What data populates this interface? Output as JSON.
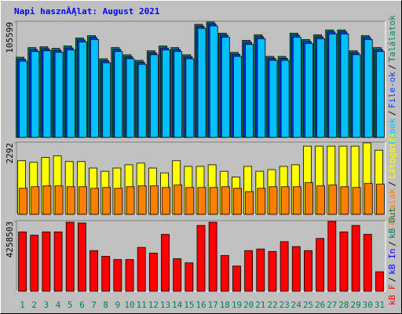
{
  "chart_data": [
    {
      "type": "bar",
      "title": "Napi hasznĂĄlat: August 2021",
      "categories": [
        "1",
        "2",
        "3",
        "4",
        "5",
        "6",
        "7",
        "8",
        "9",
        "10",
        "11",
        "12",
        "13",
        "14",
        "15",
        "16",
        "17",
        "18",
        "19",
        "20",
        "21",
        "22",
        "23",
        "24",
        "25",
        "26",
        "27",
        "28",
        "29",
        "30",
        "31"
      ],
      "category_colors": [
        "#00805c",
        "#00805c",
        "#00805c",
        "#00805c",
        "#00805c",
        "#00805c",
        "#008040",
        "#008040",
        "#00805c",
        "#00805c",
        "#00805c",
        "#00805c",
        "#00805c",
        "#008040",
        "#008040",
        "#00805c",
        "#00805c",
        "#00805c",
        "#00805c",
        "#00805c",
        "#008040",
        "#008040",
        "#00805c",
        "#00805c",
        "#00805c",
        "#00805c",
        "#00805c",
        "#008040",
        "#008040",
        "#00805c",
        "#00805c"
      ],
      "ylim": [
        0,
        105599
      ],
      "yticks": [
        105599
      ],
      "legend_separator": "/",
      "series": [
        {
          "name": "Találatok",
          "color": "#00805c",
          "values": [
            73300,
            82130,
            82860,
            81400,
            83600,
            90930,
            93130,
            71870,
            82130,
            75530,
            70400,
            79200,
            83600,
            82130,
            75530,
            103400,
            105599,
            95330,
            77730,
            88730,
            93870,
            74070,
            74070,
            95330,
            89470,
            93870,
            98270,
            98270,
            79200,
            93130,
            82130
          ]
        },
        {
          "name": "File-ok",
          "color": "#0040ff",
          "values": [
            71500,
            80330,
            81060,
            79600,
            81800,
            89130,
            91330,
            70070,
            80330,
            73730,
            68600,
            77400,
            81800,
            80330,
            73730,
            101600,
            103800,
            93530,
            75930,
            86930,
            92070,
            72270,
            72270,
            93530,
            87670,
            92070,
            96470,
            96470,
            77400,
            91330,
            80330
          ]
        },
        {
          "name": "Lapok",
          "color": "#00c0ff",
          "values": [
            69700,
            78530,
            79260,
            77800,
            80000,
            87330,
            89530,
            68270,
            78530,
            71930,
            66800,
            75600,
            80000,
            78530,
            71930,
            99800,
            102000,
            91730,
            74130,
            85130,
            90270,
            70470,
            70470,
            91730,
            85870,
            90270,
            94670,
            94670,
            75600,
            89530,
            78530
          ]
        }
      ]
    },
    {
      "type": "bar",
      "ylim": [
        0,
        2292
      ],
      "yticks": [
        2292
      ],
      "legend_separator": "/",
      "series": [
        {
          "name": "Látogatók",
          "color": "#ffff00",
          "values": [
            1719,
            1667,
            1823,
            1876,
            1693,
            1693,
            1485,
            1381,
            1485,
            1589,
            1641,
            1485,
            1329,
            1719,
            1537,
            1537,
            1589,
            1381,
            1198,
            1537,
            1381,
            1433,
            1537,
            1589,
            2188,
            2188,
            2188,
            2188,
            2188,
            2292,
            2058
          ]
        },
        {
          "name": "Oldalak",
          "color": "#ff8000",
          "values": [
            834,
            886,
            912,
            912,
            886,
            886,
            834,
            860,
            834,
            886,
            912,
            912,
            860,
            938,
            860,
            860,
            860,
            886,
            834,
            729,
            834,
            886,
            886,
            886,
            1016,
            912,
            938,
            886,
            860,
            990,
            964
          ]
        }
      ]
    },
    {
      "type": "bar",
      "ylim": [
        0,
        4258503
      ],
      "yticks": [
        4258503
      ],
      "legend_separator": "/",
      "series": [
        {
          "name": "kB F",
          "color": "#ff0000",
          "values": [
            3614800,
            3416700,
            3614800,
            3614800,
            4209000,
            4159500,
            2475900,
            2129300,
            1931200,
            1931200,
            2674000,
            2327300,
            3466300,
            1980700,
            1733100,
            4011000,
            4209000,
            2178800,
            1535100,
            2475900,
            2574900,
            2426400,
            3020600,
            2723500,
            2475900,
            3218700,
            4258503,
            3614800,
            4011000,
            3466300,
            1188400
          ]
        }
      ],
      "extra_legend": [
        {
          "name": "kB In",
          "color": "#0000ff"
        },
        {
          "name": "kB Out",
          "color": "#00805c"
        }
      ]
    }
  ]
}
